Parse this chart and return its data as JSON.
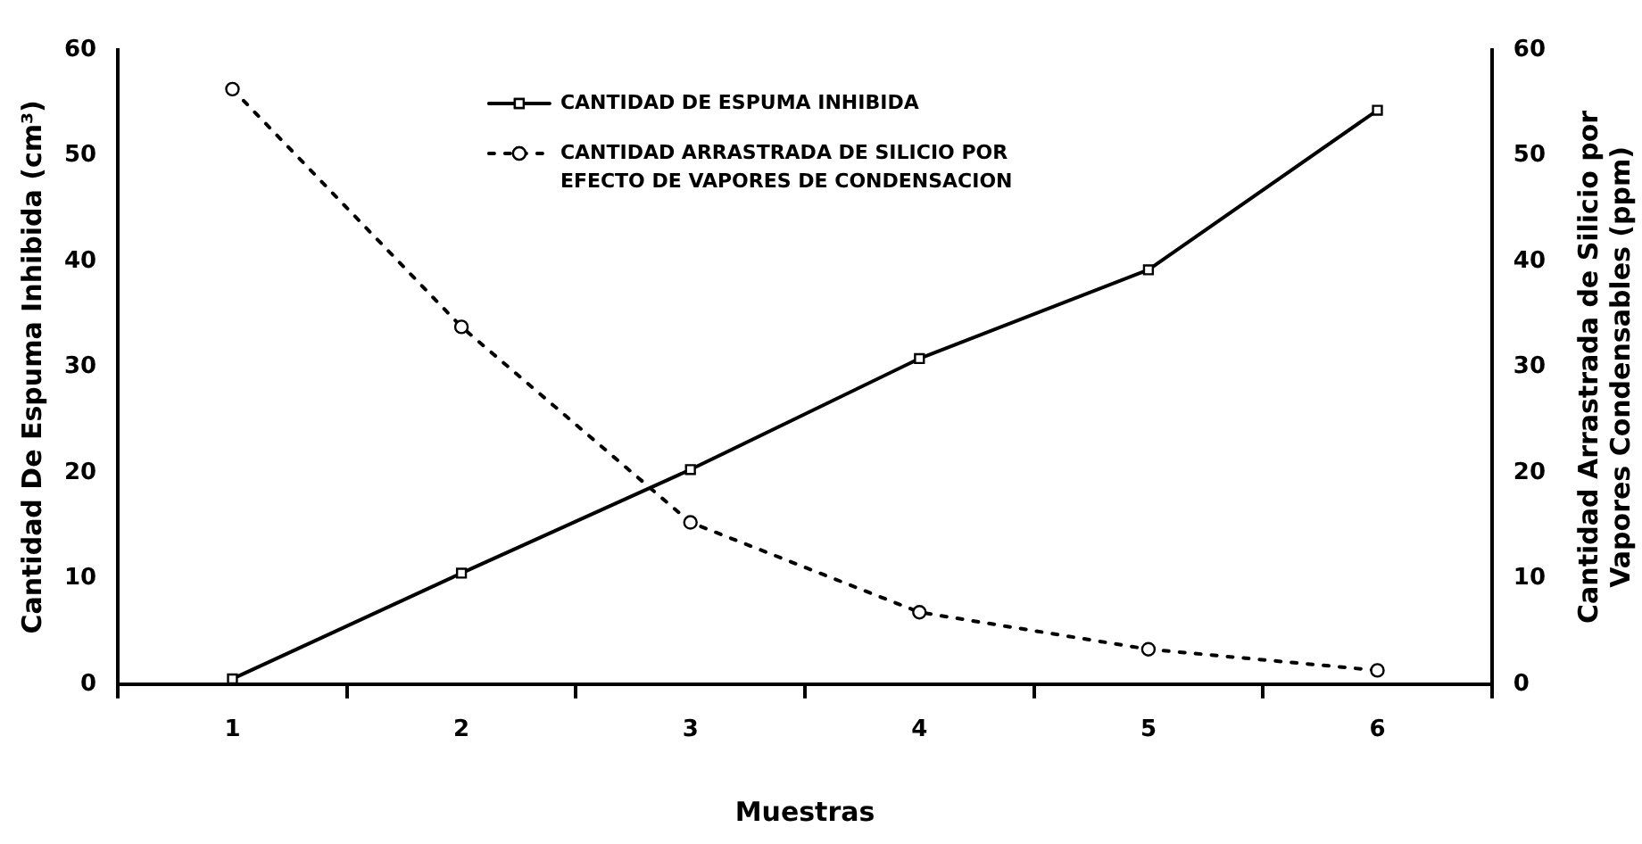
{
  "chart_data": {
    "type": "line",
    "xlabel": "Muestras",
    "ylabel": "Cantidad De Espuma Inhibida (cm³)",
    "y2label": "Cantidad Arrastrada de Silicio por Vapores Condensables (ppm)",
    "categories": [
      "1",
      "2",
      "3",
      "4",
      "5",
      "6"
    ],
    "series": [
      {
        "name": "CANTIDAD DE ESPUMA INHIBIDA",
        "color": "#000000",
        "marker": "square",
        "line_style": "solid",
        "values": [
          0.5,
          10.5,
          20.3,
          30.8,
          39.2,
          54.3
        ]
      },
      {
        "name": "CANTIDAD ARRASTRADA DE SILICIO POR EFECTO DE VAPORES DE CONDENSACION",
        "color": "#000000",
        "marker": "circle",
        "line_style": "dotted",
        "axis": "y2",
        "values": [
          56.3,
          33.8,
          15.3,
          6.8,
          3.3,
          1.3
        ]
      }
    ],
    "ylim": [
      0,
      60
    ],
    "yticks": [
      0,
      10,
      20,
      30,
      40,
      50,
      60
    ],
    "y2lim": [
      0,
      60
    ],
    "y2ticks": [
      0,
      10,
      20,
      30,
      40,
      50,
      60
    ],
    "legend": "top"
  }
}
